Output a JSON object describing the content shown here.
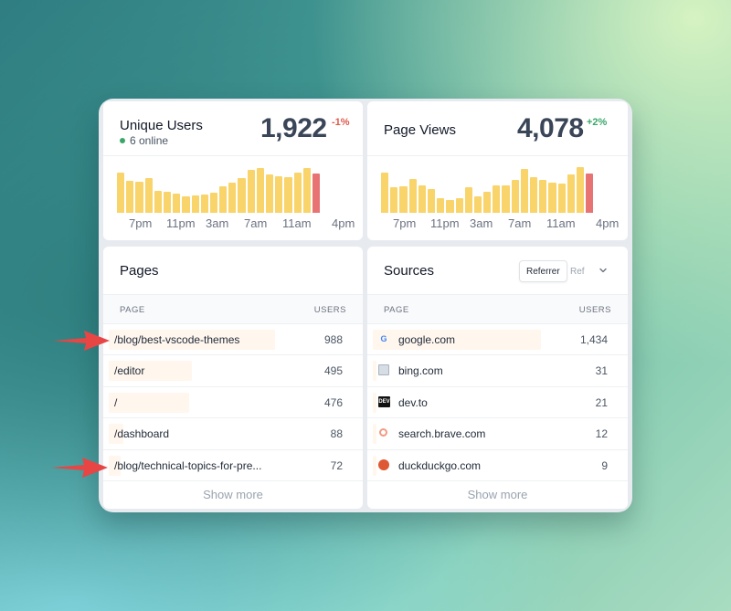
{
  "unique_users": {
    "title": "Unique Users",
    "online": "6 online",
    "value": "1,922",
    "delta": "-1%",
    "bars": [
      0.84,
      0.67,
      0.66,
      0.73,
      0.47,
      0.45,
      0.4,
      0.34,
      0.37,
      0.38,
      0.42,
      0.56,
      0.63,
      0.74,
      0.9,
      0.94,
      0.81,
      0.77,
      0.76,
      0.85,
      0.94,
      0.83
    ],
    "tick_labels": [
      "7pm",
      "11pm",
      "3am",
      "7am",
      "11am",
      "4pm"
    ]
  },
  "page_views": {
    "title": "Page Views",
    "value": "4,078",
    "delta": "+2%",
    "bars": [
      0.84,
      0.54,
      0.55,
      0.72,
      0.57,
      0.5,
      0.31,
      0.27,
      0.3,
      0.54,
      0.35,
      0.45,
      0.58,
      0.58,
      0.7,
      0.92,
      0.76,
      0.7,
      0.64,
      0.62,
      0.8,
      0.97,
      0.82
    ],
    "tick_labels": [
      "7pm",
      "11pm",
      "3am",
      "7am",
      "11am",
      "4pm"
    ]
  },
  "pages": {
    "title": "Pages",
    "col_page": "PAGE",
    "col_users": "USERS",
    "rows": [
      {
        "label": "/blog/best-vscode-themes",
        "value": "988",
        "share": 0.988
      },
      {
        "label": "/editor",
        "value": "495",
        "share": 0.495
      },
      {
        "label": "/",
        "value": "476",
        "share": 0.476
      },
      {
        "label": "/dashboard",
        "value": "88",
        "share": 0.088
      },
      {
        "label": "/blog/technical-topics-for-pre...",
        "value": "72",
        "share": 0.072
      }
    ],
    "show_more": "Show more"
  },
  "sources": {
    "title": "Sources",
    "toggle_active": "Referrer",
    "toggle_inactive": "Ref",
    "col_page": "PAGE",
    "col_users": "USERS",
    "rows": [
      {
        "label": "google.com",
        "value": "1,434",
        "share": 1.0,
        "icon": "google-icon",
        "icon_text": "G"
      },
      {
        "label": "bing.com",
        "value": "31",
        "share": 0.022,
        "icon": "bing-icon",
        "icon_text": ""
      },
      {
        "label": "dev.to",
        "value": "21",
        "share": 0.015,
        "icon": "dev-icon",
        "icon_text": "DEV"
      },
      {
        "label": "search.brave.com",
        "value": "12",
        "share": 0.008,
        "icon": "brave-icon",
        "icon_text": ""
      },
      {
        "label": "duckduckgo.com",
        "value": "9",
        "share": 0.006,
        "icon": "duckduckgo-icon",
        "icon_text": ""
      }
    ],
    "show_more": "Show more"
  },
  "colors": {
    "bar": "#f8d46b",
    "bar_current": "#e87373",
    "negative": "#e05a4c",
    "positive": "#3aa769",
    "arrow": "#e84545",
    "row_highlight": "#fff6ee"
  }
}
